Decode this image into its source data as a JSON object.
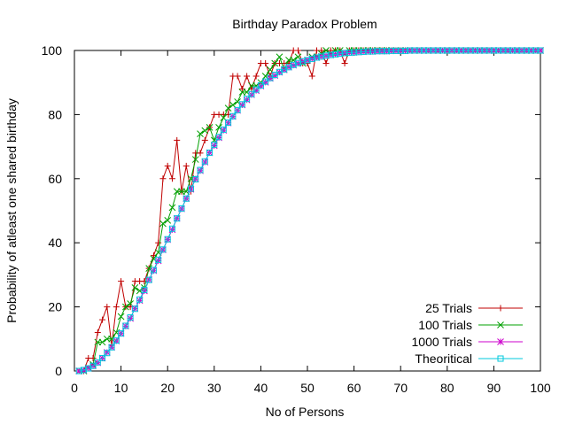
{
  "chart_data": {
    "type": "line",
    "title": "Birthday Paradox Problem",
    "xlabel": "No of Persons",
    "ylabel": "Probability of atleast one shared birthday",
    "xlim": [
      0,
      100
    ],
    "ylim": [
      0,
      100
    ],
    "x_ticks": [
      0,
      10,
      20,
      30,
      40,
      50,
      60,
      70,
      80,
      90,
      100
    ],
    "y_ticks": [
      0,
      20,
      40,
      60,
      80,
      100
    ],
    "grid": false,
    "legend_position": "bottom-right",
    "x": [
      1,
      2,
      3,
      4,
      5,
      6,
      7,
      8,
      9,
      10,
      11,
      12,
      13,
      14,
      15,
      16,
      17,
      18,
      19,
      20,
      21,
      22,
      23,
      24,
      25,
      26,
      27,
      28,
      29,
      30,
      31,
      32,
      33,
      34,
      35,
      36,
      37,
      38,
      39,
      40,
      41,
      42,
      43,
      44,
      45,
      46,
      47,
      48,
      49,
      50,
      51,
      52,
      53,
      54,
      55,
      56,
      57,
      58,
      59,
      60,
      61,
      62,
      63,
      64,
      65,
      66,
      67,
      68,
      69,
      70,
      71,
      72,
      73,
      74,
      75,
      76,
      77,
      78,
      79,
      80,
      81,
      82,
      83,
      84,
      85,
      86,
      87,
      88,
      89,
      90,
      91,
      92,
      93,
      94,
      95,
      96,
      97,
      98,
      99,
      100
    ],
    "series": [
      {
        "name": "25 Trials",
        "color": "#c00000",
        "marker": "plus",
        "values": [
          0,
          0,
          4,
          4,
          12,
          16,
          20,
          8,
          20,
          28,
          20,
          20,
          28,
          28,
          28,
          32,
          36,
          40,
          60,
          64,
          60,
          72,
          56,
          64,
          56,
          68,
          68,
          72,
          76,
          80,
          80,
          80,
          80,
          92,
          92,
          88,
          92,
          88,
          92,
          96,
          96,
          92,
          96,
          96,
          96,
          96,
          100,
          100,
          96,
          96,
          92,
          100,
          100,
          96,
          100,
          100,
          100,
          96,
          100,
          100,
          100,
          100,
          100,
          100,
          100,
          100,
          100,
          100,
          100,
          100,
          100,
          100,
          100,
          100,
          100,
          100,
          100,
          100,
          100,
          100,
          100,
          100,
          100,
          100,
          100,
          100,
          100,
          100,
          100,
          100,
          100,
          100,
          100,
          100,
          100,
          100,
          100,
          100,
          100,
          100
        ]
      },
      {
        "name": "100 Trials",
        "color": "#00a000",
        "marker": "cross",
        "values": [
          0,
          0,
          1,
          2,
          9,
          9,
          10,
          10,
          12,
          17,
          20,
          21,
          26,
          25,
          26,
          32,
          35,
          37,
          46,
          47,
          51,
          56,
          56,
          56,
          60,
          66,
          74,
          75,
          76,
          72,
          76,
          79,
          82,
          83,
          84,
          87,
          87,
          89,
          89,
          90,
          92,
          94,
          96,
          98,
          94,
          97,
          97,
          98,
          96,
          97,
          98,
          98,
          99,
          100,
          99,
          100,
          100,
          99,
          100,
          100,
          100,
          100,
          100,
          100,
          100,
          100,
          100,
          100,
          100,
          100,
          100,
          100,
          100,
          100,
          100,
          100,
          100,
          100,
          100,
          100,
          100,
          100,
          100,
          100,
          100,
          100,
          100,
          100,
          100,
          100,
          100,
          100,
          100,
          100,
          100,
          100,
          100,
          100,
          100,
          100
        ]
      },
      {
        "name": "1000 Trials",
        "color": "#cc00cc",
        "marker": "star",
        "values": [
          0,
          0.2,
          0.9,
          1.6,
          2.6,
          4.0,
          5.8,
          7.4,
          9.4,
          11.7,
          14.0,
          16.4,
          19.5,
          22.0,
          25.0,
          28.5,
          31.3,
          34.4,
          37.8,
          41.0,
          44.1,
          47.6,
          50.6,
          53.8,
          56.7,
          59.9,
          62.5,
          65.2,
          68.1,
          70.3,
          72.8,
          75.1,
          77.4,
          79.4,
          81.3,
          83.0,
          84.6,
          86.2,
          87.5,
          88.9,
          90.1,
          91.3,
          92.2,
          93.2,
          94.0,
          94.8,
          95.4,
          96.0,
          96.6,
          97.0,
          97.4,
          97.8,
          98.1,
          98.4,
          98.6,
          98.8,
          99.0,
          99.2,
          99.3,
          99.4,
          99.5,
          99.6,
          99.7,
          99.7,
          99.8,
          99.8,
          99.8,
          99.9,
          99.9,
          99.9,
          99.9,
          100,
          100,
          100,
          100,
          100,
          100,
          100,
          100,
          100,
          100,
          100,
          100,
          100,
          100,
          100,
          100,
          100,
          100,
          100,
          100,
          100,
          100,
          100,
          100,
          100,
          100,
          100,
          100,
          100
        ]
      },
      {
        "name": "Theoritical",
        "color": "#00c8dc",
        "marker": "square",
        "values": [
          0,
          0.3,
          0.8,
          1.6,
          2.7,
          4.0,
          5.6,
          7.4,
          9.5,
          11.7,
          14.1,
          16.7,
          19.4,
          22.3,
          25.3,
          28.4,
          31.5,
          34.7,
          37.9,
          41.1,
          44.4,
          47.6,
          50.7,
          53.8,
          56.9,
          59.8,
          62.7,
          65.4,
          68.1,
          70.6,
          73.0,
          75.3,
          77.5,
          79.5,
          81.4,
          83.2,
          84.9,
          86.4,
          87.8,
          89.1,
          90.3,
          91.4,
          92.4,
          93.3,
          94.1,
          94.8,
          95.5,
          96.1,
          96.6,
          97.0,
          97.4,
          97.8,
          98.1,
          98.4,
          98.6,
          98.8,
          99.0,
          99.2,
          99.3,
          99.4,
          99.5,
          99.6,
          99.7,
          99.7,
          99.8,
          99.8,
          99.8,
          99.9,
          99.9,
          99.9,
          99.9,
          100,
          100,
          100,
          100,
          100,
          100,
          100,
          100,
          100,
          100,
          100,
          100,
          100,
          100,
          100,
          100,
          100,
          100,
          100,
          100,
          100,
          100,
          100,
          100,
          100,
          100,
          100,
          100,
          100
        ]
      }
    ]
  }
}
